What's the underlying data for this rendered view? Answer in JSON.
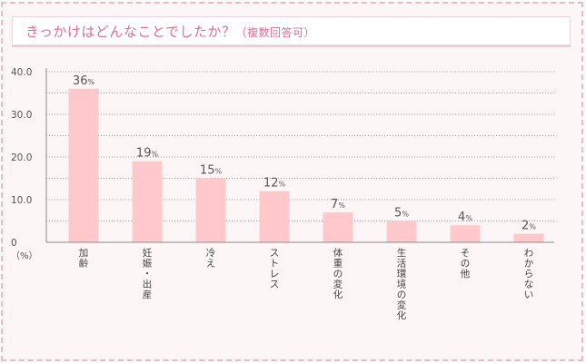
{
  "title": {
    "main": "きっかけはどんなことでしたか？",
    "sub": "（複数回答可）"
  },
  "colors": {
    "bar": "#ffc9cb",
    "title_text": "#e06f93",
    "border": "#f0b7c6",
    "background": "#fcf6f6"
  },
  "chart_data": {
    "type": "bar",
    "categories": [
      "加齢",
      "妊娠・出産",
      "冷え",
      "ストレス",
      "体重の変化",
      "生活環境の変化",
      "その他",
      "わからない"
    ],
    "values": [
      36,
      19,
      15,
      12,
      7,
      5,
      4,
      2
    ],
    "value_suffix": "%",
    "yticks": [
      "40.0",
      "30.0",
      "20.0",
      "10.0",
      "0"
    ],
    "ylim": [
      0,
      40
    ],
    "y_unit": "（%）",
    "grid": true
  }
}
